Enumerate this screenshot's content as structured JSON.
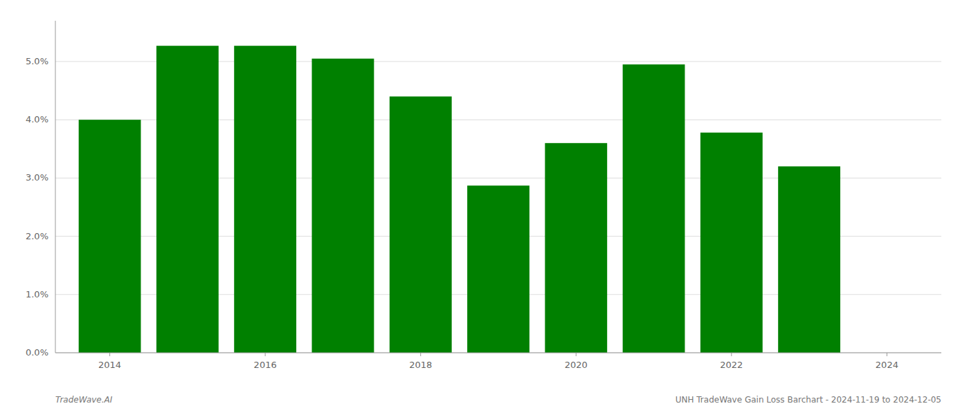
{
  "chart_data": {
    "type": "bar",
    "title": "UNH TradeWave Gain Loss Barchart - 2024-11-19 to 2024-12-05",
    "annotations": [
      "TradeWave.AI"
    ],
    "x": [
      2014,
      2015,
      2016,
      2017,
      2018,
      2019,
      2020,
      2021,
      2022,
      2023
    ],
    "values": [
      0.04,
      0.0527,
      0.0527,
      0.0505,
      0.044,
      0.0287,
      0.036,
      0.0495,
      0.0378,
      0.032
    ],
    "color": "#008000",
    "xlim": [
      2013.3,
      2024.7
    ],
    "xticks": [
      2014,
      2016,
      2018,
      2020,
      2022,
      2024
    ],
    "ylim": [
      0.0,
      0.057
    ],
    "yticks": [
      {
        "value": 0.0,
        "label": "0.0%"
      },
      {
        "value": 0.01,
        "label": "1.0%"
      },
      {
        "value": 0.02,
        "label": "2.0%"
      },
      {
        "value": 0.03,
        "label": "3.0%"
      },
      {
        "value": 0.04,
        "label": "4.0%"
      },
      {
        "value": 0.05,
        "label": "5.0%"
      }
    ],
    "grid": true
  }
}
